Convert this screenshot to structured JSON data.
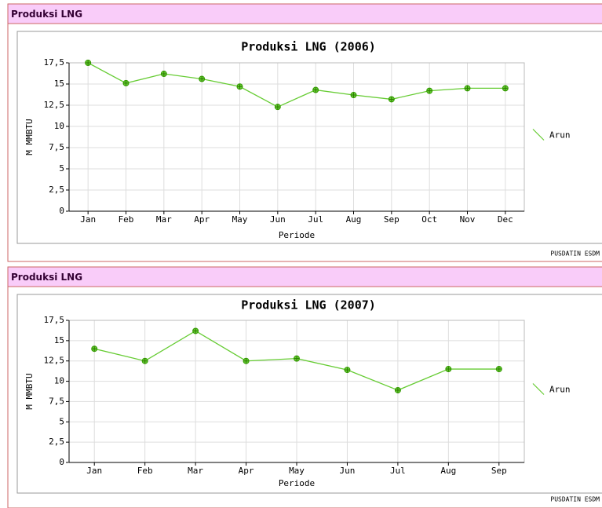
{
  "panels": [
    {
      "header": "Produksi LNG",
      "footer": "PUSDATIN ESDM"
    },
    {
      "header": "Produksi LNG",
      "footer": "PUSDATIN ESDM"
    }
  ],
  "chart_data": [
    {
      "type": "line",
      "title": "Produksi LNG (2006)",
      "x_label": "Periode",
      "y_label": "M MMBTU",
      "categories": [
        "Jan",
        "Feb",
        "Mar",
        "Apr",
        "May",
        "Jun",
        "Jul",
        "Aug",
        "Sep",
        "Oct",
        "Nov",
        "Dec"
      ],
      "series": [
        {
          "name": "Arun",
          "color": "#66cc33",
          "values": [
            17.5,
            15.1,
            16.2,
            15.6,
            14.7,
            12.3,
            14.3,
            13.7,
            13.2,
            14.2,
            14.5,
            14.5
          ]
        }
      ],
      "ylim": [
        0,
        17.5
      ],
      "yticks": [
        0,
        {
          "value": 2.5,
          "label": "2,5"
        },
        5,
        {
          "value": 7.5,
          "label": "7,5"
        },
        10,
        {
          "value": 12.5,
          "label": "12,5"
        },
        15,
        {
          "value": 17.5,
          "label": "17,5"
        }
      ],
      "grid": true,
      "legend": "right"
    },
    {
      "type": "line",
      "title": "Produksi LNG (2007)",
      "x_label": "Periode",
      "y_label": "M MMBTU",
      "categories": [
        "Jan",
        "Feb",
        "Mar",
        "Apr",
        "May",
        "Jun",
        "Jul",
        "Aug",
        "Sep"
      ],
      "series": [
        {
          "name": "Arun",
          "color": "#66cc33",
          "values": [
            14.0,
            12.5,
            16.2,
            12.5,
            12.8,
            11.4,
            8.9,
            11.5,
            11.5
          ]
        }
      ],
      "ylim": [
        0,
        17.5
      ],
      "yticks": [
        0,
        {
          "value": 2.5,
          "label": "2,5"
        },
        5,
        {
          "value": 7.5,
          "label": "7,5"
        },
        10,
        {
          "value": 12.5,
          "label": "12,5"
        },
        15,
        {
          "value": 17.5,
          "label": "17,5"
        }
      ],
      "grid": true,
      "legend": "right"
    }
  ]
}
